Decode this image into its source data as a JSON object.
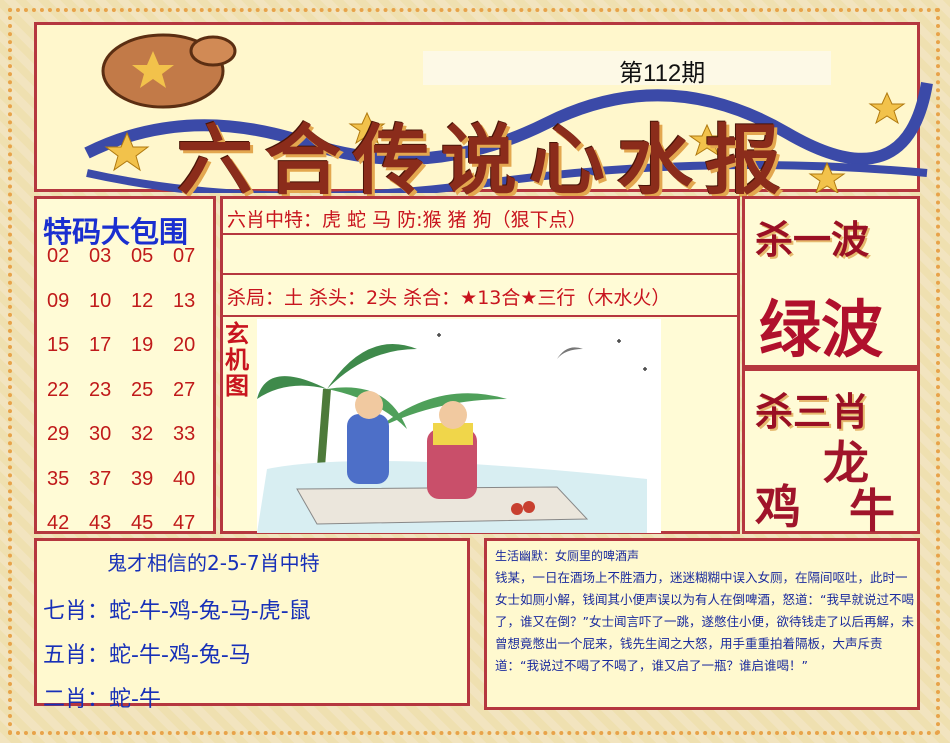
{
  "header": {
    "issue": "第112期",
    "title": "六合传说心水报"
  },
  "left": {
    "title": "特码大包围",
    "numbers": [
      [
        "02",
        "03",
        "05",
        "07"
      ],
      [
        "09",
        "10",
        "12",
        "13"
      ],
      [
        "15",
        "17",
        "19",
        "20"
      ],
      [
        "22",
        "23",
        "25",
        "27"
      ],
      [
        "29",
        "30",
        "32",
        "33"
      ],
      [
        "35",
        "37",
        "39",
        "40"
      ],
      [
        "42",
        "43",
        "45",
        "47"
      ]
    ]
  },
  "middle": {
    "line1": "六肖中特：虎 蛇 马 防:猴 猪 狗（狠下点）",
    "line3": "杀局：土 杀头：2头 杀合：★13合★三行（木水火）",
    "xuanji": "玄机图"
  },
  "right": {
    "kill_wave_title": "杀一波",
    "kill_wave_value": "绿波",
    "kill_zodiac_title": "杀三肖",
    "zodiac_dragon": "龙",
    "zodiac_rooster": "鸡",
    "zodiac_ox": "牛"
  },
  "bottom_left": {
    "title": "鬼才相信的2-5-7肖中特",
    "row7": "七肖：蛇-牛-鸡-兔-马-虎-鼠",
    "row5": "五肖：蛇-牛-鸡-兔-马",
    "row2": "二肖：蛇-牛"
  },
  "bottom_right": {
    "title": "生活幽默：女厕里的啤酒声",
    "body": "钱某，一日在酒场上不胜酒力，迷迷糊糊中误入女厕，在隔间呕吐，此时一女士如厕小解，钱闻其小便声误以为有人在倒啤酒，怒道：“我早就说过不喝了，谁又在倒？”女士闻言吓了一跳，遂憋住小便，欲待钱走了以后再解，未曾想竟憋出一个屁来，钱先生闻之大怒，用手重重拍着隔板，大声斥责道：“我说过不喝了不喝了，谁又启了一瓶？谁启谁喝！”"
  }
}
